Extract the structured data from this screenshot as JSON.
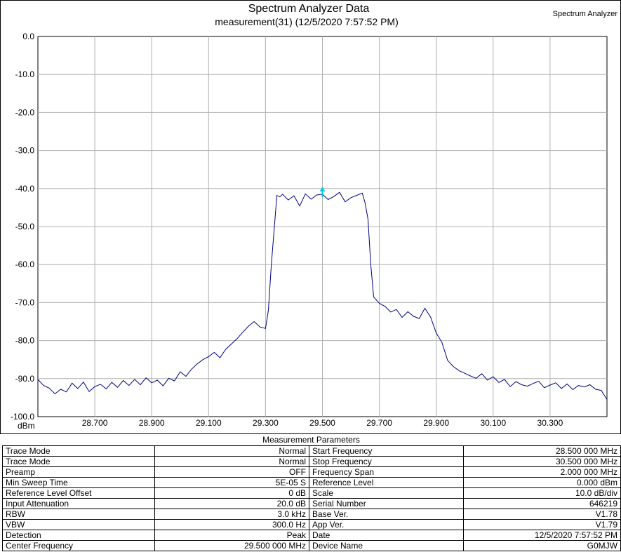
{
  "chart_data": {
    "type": "line",
    "title": "Spectrum Analyzer Data",
    "subtitle": "measurement(31) (12/5/2020 7:57:52 PM)",
    "corner_label": "Spectrum Analyzer",
    "ylabel": "dBm",
    "xlabel": "",
    "xlim": [
      28.5,
      30.5
    ],
    "ylim": [
      -100,
      0
    ],
    "grid": true,
    "x_ticks": [
      "28.700",
      "28.900",
      "29.100",
      "29.300",
      "29.500",
      "29.700",
      "29.900",
      "30.100",
      "30.300"
    ],
    "y_ticks": [
      "0.0",
      "-10.0",
      "-20.0",
      "-30.0",
      "-40.0",
      "-50.0",
      "-60.0",
      "-70.0",
      "-80.0",
      "-90.0",
      "-100.0"
    ],
    "line_color": "#000080",
    "marker": {
      "x": 29.5,
      "y": -41.5,
      "color": "#00c8e8"
    },
    "series": [
      {
        "x": [
          28.5,
          28.52,
          28.54,
          28.56,
          28.58,
          28.6,
          28.62,
          28.64,
          28.66,
          28.68,
          28.7,
          28.72,
          28.74,
          28.76,
          28.78,
          28.8,
          28.82,
          28.84,
          28.86,
          28.88,
          28.9,
          28.92,
          28.94,
          28.96,
          28.98,
          29.0,
          29.02,
          29.04,
          29.06,
          29.08,
          29.1,
          29.12,
          29.14,
          29.16,
          29.18,
          29.2,
          29.22,
          29.24,
          29.26,
          29.28,
          29.3,
          29.31,
          29.32,
          29.33,
          29.34,
          29.35,
          29.36,
          29.38,
          29.4,
          29.42,
          29.44,
          29.46,
          29.48,
          29.5,
          29.52,
          29.54,
          29.56,
          29.58,
          29.6,
          29.62,
          29.64,
          29.65,
          29.66,
          29.67,
          29.68,
          29.7,
          29.72,
          29.74,
          29.76,
          29.78,
          29.8,
          29.82,
          29.84,
          29.86,
          29.88,
          29.9,
          29.92,
          29.94,
          29.96,
          29.98,
          30.0,
          30.02,
          30.04,
          30.06,
          30.08,
          30.1,
          30.12,
          30.14,
          30.16,
          30.18,
          30.2,
          30.22,
          30.24,
          30.26,
          30.28,
          30.3,
          30.32,
          30.34,
          30.36,
          30.38,
          30.4,
          30.42,
          30.44,
          30.46,
          30.48,
          30.5
        ],
        "values": [
          -90.2,
          -91.8,
          -92.5,
          -94.0,
          -92.8,
          -93.5,
          -91.2,
          -92.6,
          -90.9,
          -93.4,
          -92.1,
          -91.5,
          -92.7,
          -91.0,
          -92.3,
          -90.5,
          -91.8,
          -90.2,
          -91.6,
          -89.8,
          -91.1,
          -90.4,
          -91.9,
          -89.9,
          -90.6,
          -88.2,
          -89.4,
          -87.5,
          -86.1,
          -85.0,
          -84.2,
          -83.1,
          -84.5,
          -82.3,
          -80.9,
          -79.5,
          -77.8,
          -76.2,
          -75.0,
          -76.4,
          -76.8,
          -72.0,
          -60.5,
          -51.0,
          -41.8,
          -42.2,
          -41.5,
          -43.0,
          -41.9,
          -44.6,
          -41.4,
          -42.8,
          -41.7,
          -41.5,
          -42.9,
          -42.1,
          -41.0,
          -43.5,
          -42.4,
          -41.8,
          -41.2,
          -43.8,
          -48.0,
          -60.0,
          -68.5,
          -70.2,
          -71.0,
          -72.5,
          -71.8,
          -73.9,
          -72.4,
          -73.6,
          -74.2,
          -71.5,
          -73.8,
          -78.0,
          -80.5,
          -85.2,
          -86.8,
          -87.9,
          -88.6,
          -89.3,
          -89.9,
          -88.7,
          -90.4,
          -89.5,
          -91.0,
          -90.2,
          -92.1,
          -90.8,
          -91.6,
          -92.0,
          -91.3,
          -90.7,
          -92.4,
          -91.7,
          -91.1,
          -92.6,
          -91.4,
          -92.9,
          -91.8,
          -92.2,
          -91.6,
          -92.8,
          -93.1,
          -95.5
        ]
      }
    ]
  },
  "params": {
    "title": "Measurement Parameters",
    "rows": [
      [
        "Trace Mode",
        "Normal",
        "Start Frequency",
        "28.500 000 MHz"
      ],
      [
        "Trace Mode",
        "Normal",
        "Stop Frequency",
        "30.500 000 MHz"
      ],
      [
        "Preamp",
        "OFF",
        "Frequency Span",
        "2.000 000 MHz"
      ],
      [
        "Min Sweep Time",
        "5E-05 S",
        "Reference Level",
        "0.000  dBm"
      ],
      [
        "Reference Level Offset",
        "0 dB",
        "Scale",
        "10.0  dB/div"
      ],
      [
        "Input Attenuation",
        "20.0 dB",
        "Serial Number",
        "646219"
      ],
      [
        "RBW",
        "3.0 kHz",
        "Base Ver.",
        "V1.78"
      ],
      [
        "VBW",
        "300.0 Hz",
        "App Ver.",
        "V1.79"
      ],
      [
        "Detection",
        "Peak",
        "Date",
        "12/5/2020 7:57:52 PM"
      ],
      [
        "Center Frequency",
        "29.500 000 MHz",
        "Device Name",
        "G0MJW"
      ]
    ]
  }
}
